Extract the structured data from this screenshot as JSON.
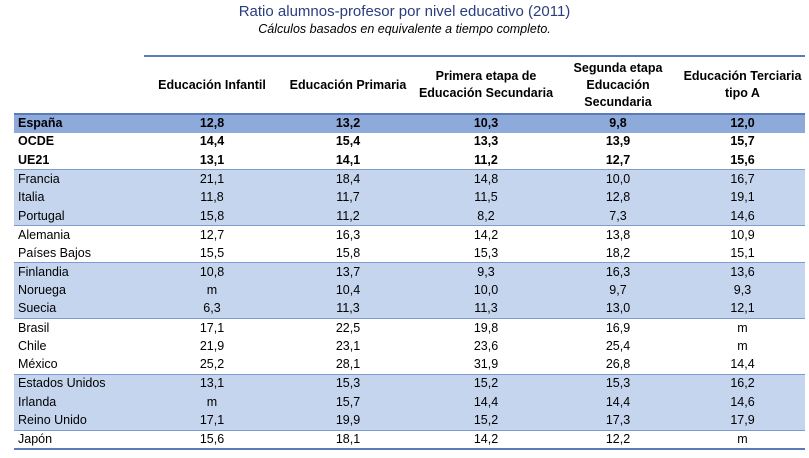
{
  "title": "Ratio alumnos-profesor por nivel educativo (2011)",
  "subtitle": "Cálculos basados en equivalente a tiempo completo.",
  "colors": {
    "title": "#2a3e7e",
    "highlight_row": "#8eaadb",
    "shaded_row": "#c5d5ee",
    "rule": "#5b7ab8"
  },
  "columns": [
    "",
    "Educación Infantil",
    "Educación Primaria",
    "Primera etapa de Educación Secundaria",
    "Segunda etapa Educación Secundaria",
    "Educación Terciaria tipo A"
  ],
  "rows": [
    {
      "label": "España",
      "values": [
        "12,8",
        "13,2",
        "10,3",
        "9,8",
        "12,0"
      ]
    },
    {
      "label": "OCDE",
      "values": [
        "14,4",
        "15,4",
        "13,3",
        "13,9",
        "15,7"
      ]
    },
    {
      "label": "UE21",
      "values": [
        "13,1",
        "14,1",
        "11,2",
        "12,7",
        "15,6"
      ]
    },
    {
      "label": "Francia",
      "values": [
        "21,1",
        "18,4",
        "14,8",
        "10,0",
        "16,7"
      ]
    },
    {
      "label": "Italia",
      "values": [
        "11,8",
        "11,7",
        "11,5",
        "12,8",
        "19,1"
      ]
    },
    {
      "label": "Portugal",
      "values": [
        "15,8",
        "11,2",
        "8,2",
        "7,3",
        "14,6"
      ]
    },
    {
      "label": "Alemania",
      "values": [
        "12,7",
        "16,3",
        "14,2",
        "13,8",
        "10,9"
      ]
    },
    {
      "label": "Países Bajos",
      "values": [
        "15,5",
        "15,8",
        "15,3",
        "18,2",
        "15,1"
      ]
    },
    {
      "label": "Finlandia",
      "values": [
        "10,8",
        "13,7",
        "9,3",
        "16,3",
        "13,6"
      ]
    },
    {
      "label": "Noruega",
      "values": [
        "m",
        "10,4",
        "10,0",
        "9,7",
        "9,3"
      ]
    },
    {
      "label": "Suecia",
      "values": [
        "6,3",
        "11,3",
        "11,3",
        "13,0",
        "12,1"
      ]
    },
    {
      "label": "Brasil",
      "values": [
        "17,1",
        "22,5",
        "19,8",
        "16,9",
        "m"
      ]
    },
    {
      "label": "Chile",
      "values": [
        "21,9",
        "23,1",
        "23,6",
        "25,4",
        "m"
      ]
    },
    {
      "label": "México",
      "values": [
        "25,2",
        "28,1",
        "31,9",
        "26,8",
        "14,4"
      ]
    },
    {
      "label": "Estados Unidos",
      "values": [
        "13,1",
        "15,3",
        "15,2",
        "15,3",
        "16,2"
      ]
    },
    {
      "label": "Irlanda",
      "values": [
        "m",
        "15,7",
        "14,4",
        "14,4",
        "14,6"
      ]
    },
    {
      "label": "Reino Unido",
      "values": [
        "17,1",
        "19,9",
        "15,2",
        "17,3",
        "17,9"
      ]
    },
    {
      "label": "Japón",
      "values": [
        "15,6",
        "18,1",
        "14,2",
        "12,2",
        "m"
      ]
    }
  ]
}
